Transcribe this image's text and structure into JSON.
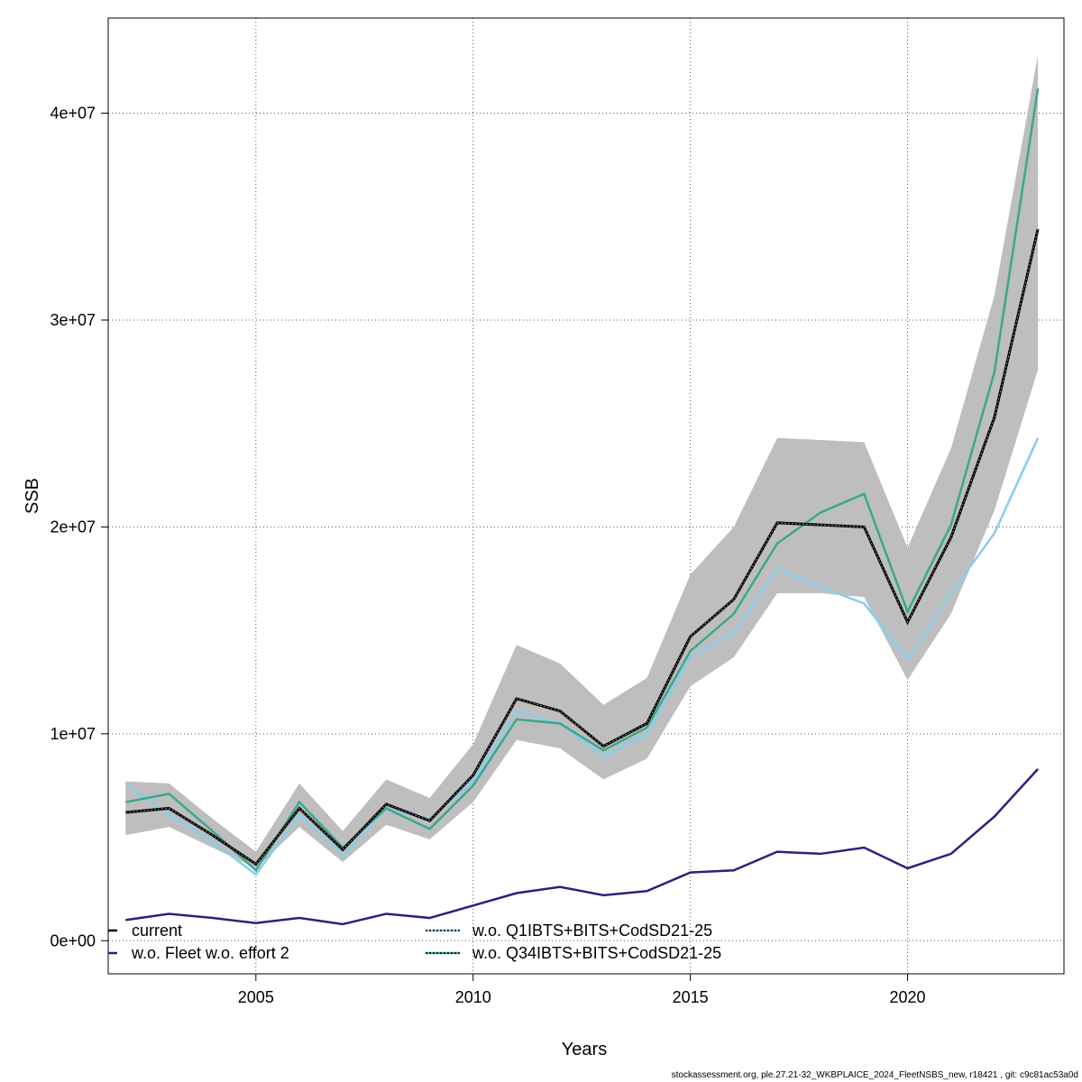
{
  "chart_data": {
    "type": "line",
    "xlabel": "Years",
    "ylabel": "SSB",
    "xlim": [
      2001.6,
      2023.6
    ],
    "ylim": [
      -1600000,
      44600000
    ],
    "x_ticks": [
      2005,
      2010,
      2015,
      2020
    ],
    "x_tick_labels": [
      "2005",
      "2010",
      "2015",
      "2020"
    ],
    "y_ticks": [
      0,
      10000000,
      20000000,
      30000000,
      40000000
    ],
    "y_tick_labels": [
      "0e+00",
      "1e+07",
      "2e+07",
      "3e+07",
      "4e+07"
    ],
    "grid": true,
    "x": [
      2002,
      2003,
      2004,
      2005,
      2006,
      2007,
      2008,
      2009,
      2010,
      2011,
      2012,
      2013,
      2014,
      2015,
      2016,
      2017,
      2018,
      2019,
      2020,
      2021,
      2022,
      2023
    ],
    "confidence_band": {
      "lower": [
        5100000,
        5500000,
        4500000,
        3500000,
        5500000,
        3800000,
        5600000,
        4900000,
        6700000,
        9700000,
        9300000,
        7800000,
        8800000,
        12300000,
        13700000,
        16800000,
        16800000,
        16600000,
        12600000,
        15800000,
        20800000,
        27600000
      ],
      "upper": [
        7700000,
        7600000,
        5900000,
        4300000,
        7600000,
        5300000,
        7800000,
        6900000,
        9500000,
        14300000,
        13400000,
        11400000,
        12700000,
        17700000,
        20000000,
        24300000,
        24200000,
        24100000,
        19000000,
        23800000,
        31200000,
        42800000
      ],
      "color": "#bebebe"
    },
    "series": [
      {
        "name": "current",
        "color": "#000000",
        "values": [
          6200000,
          6400000,
          5100000,
          3700000,
          6400000,
          4400000,
          6600000,
          5800000,
          8000000,
          11700000,
          11100000,
          9400000,
          10500000,
          14700000,
          16500000,
          20200000,
          20100000,
          20000000,
          15400000,
          19500000,
          25300000,
          34400000
        ]
      },
      {
        "name": "w.o. Fleet w.o. effort 2",
        "color": "#2e1f7f",
        "values": [
          1000000,
          1300000,
          1100000,
          850000,
          1100000,
          800000,
          1300000,
          1100000,
          1700000,
          2300000,
          2600000,
          2200000,
          2400000,
          3300000,
          3400000,
          4300000,
          4200000,
          4500000,
          3500000,
          4200000,
          6000000,
          8300000
        ]
      },
      {
        "name": "w.o. Q1IBTS+BITS+CodSD21-25",
        "color": "#87ceeb",
        "values": [
          7600000,
          6100000,
          4800000,
          3200000,
          6100000,
          4100000,
          6400000,
          5900000,
          7700000,
          11100000,
          10500000,
          8900000,
          10000000,
          13700000,
          14900000,
          18000000,
          17100000,
          16300000,
          13600000,
          16800000,
          19700000,
          24300000
        ]
      },
      {
        "name": "w.o. Q34IBTS+BITS+CodSD21-25",
        "color": "#3aa88e",
        "values": [
          6700000,
          7100000,
          5300000,
          3400000,
          6700000,
          4500000,
          6400000,
          5400000,
          7500000,
          10700000,
          10500000,
          9200000,
          10300000,
          14000000,
          15800000,
          19200000,
          20700000,
          21600000,
          15900000,
          20100000,
          27500000,
          41200000
        ]
      }
    ],
    "legend": {
      "placement": "bottom-left",
      "entries": [
        {
          "label": "current",
          "color": "#000000"
        },
        {
          "label": "w.o. Fleet w.o. effort 2",
          "color": "#2e1f7f"
        },
        {
          "label": "w.o. Q1IBTS+BITS+CodSD21-25",
          "color": "#87ceeb"
        },
        {
          "label": "w.o. Q34IBTS+BITS+CodSD21-25",
          "color": "#3aa88e"
        }
      ]
    }
  },
  "footer": "stockassessment.org, ple.27.21-32_WKBPLAICE_2024_FleetNSBS_new, r18421 , git: c9c81ac53a0d"
}
